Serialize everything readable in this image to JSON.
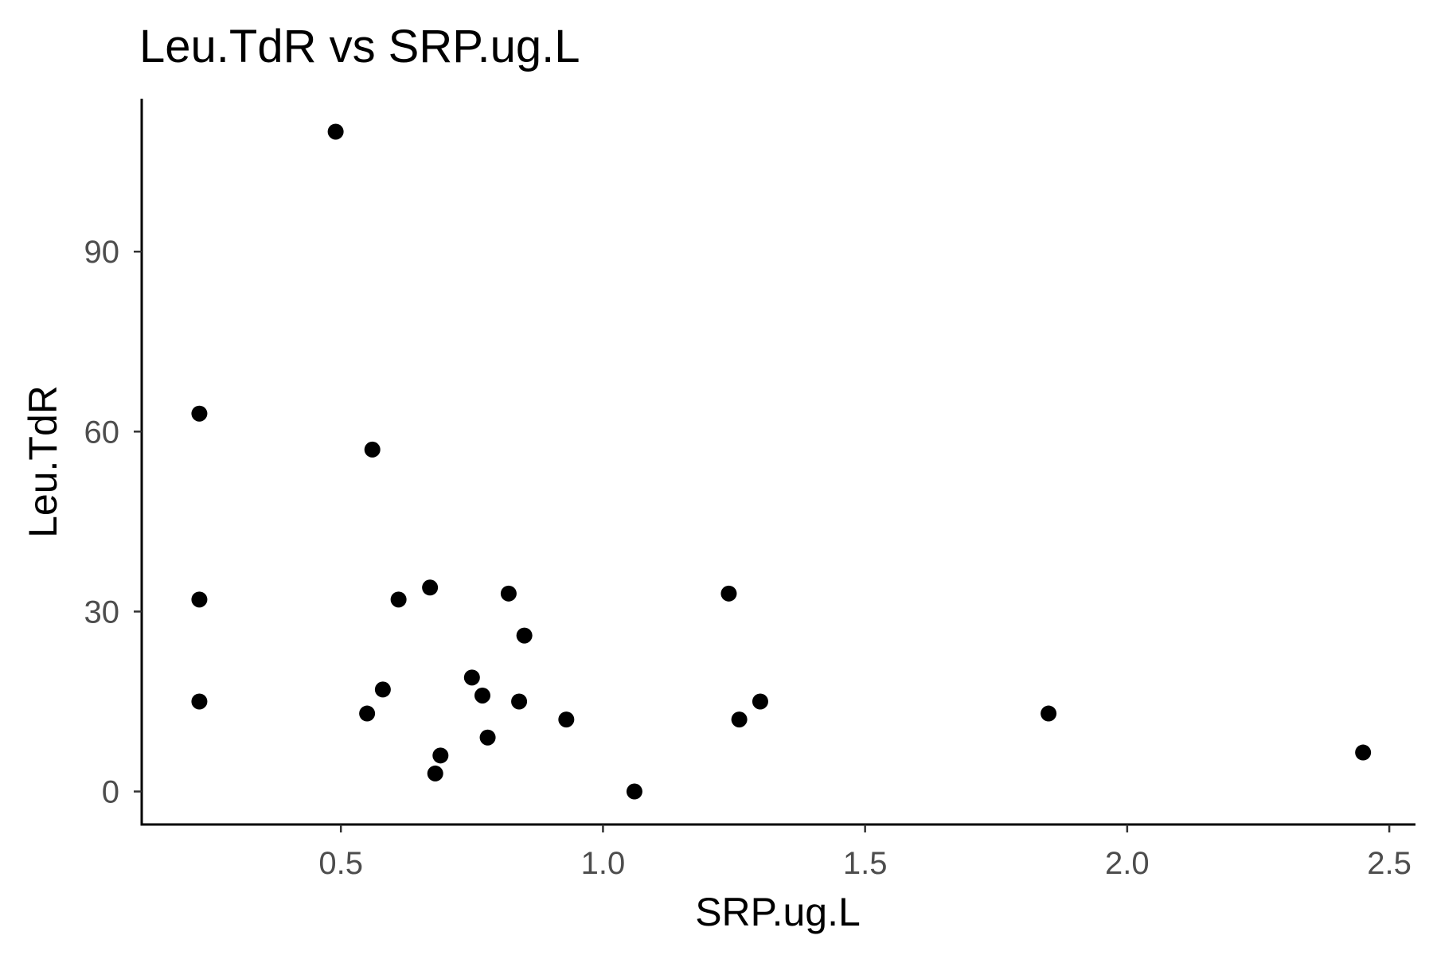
{
  "chart_data": {
    "type": "scatter",
    "title": "Leu.TdR vs SRP.ug.L",
    "xlabel": "SRP.ug.L",
    "ylabel": "Leu.TdR",
    "xlim": [
      0.12,
      2.55
    ],
    "ylim": [
      -5.5,
      115.5
    ],
    "xticks": [
      0.5,
      1.0,
      1.5,
      2.0,
      2.5
    ],
    "xtick_labels": [
      "0.5",
      "1.0",
      "1.5",
      "2.0",
      "2.5"
    ],
    "yticks": [
      0,
      30,
      60,
      90
    ],
    "ytick_labels": [
      "0",
      "30",
      "60",
      "90"
    ],
    "grid": false,
    "legend": "none",
    "point_color": "#000000",
    "points": [
      {
        "x": 0.49,
        "y": 110
      },
      {
        "x": 0.23,
        "y": 63
      },
      {
        "x": 0.23,
        "y": 32
      },
      {
        "x": 0.23,
        "y": 15
      },
      {
        "x": 0.56,
        "y": 57
      },
      {
        "x": 0.61,
        "y": 32
      },
      {
        "x": 0.67,
        "y": 34
      },
      {
        "x": 0.82,
        "y": 33
      },
      {
        "x": 0.85,
        "y": 26
      },
      {
        "x": 0.58,
        "y": 17
      },
      {
        "x": 0.55,
        "y": 13
      },
      {
        "x": 0.75,
        "y": 19
      },
      {
        "x": 0.77,
        "y": 16
      },
      {
        "x": 0.84,
        "y": 15
      },
      {
        "x": 0.93,
        "y": 12
      },
      {
        "x": 0.78,
        "y": 9
      },
      {
        "x": 0.69,
        "y": 6
      },
      {
        "x": 0.68,
        "y": 3
      },
      {
        "x": 1.06,
        "y": 0
      },
      {
        "x": 1.24,
        "y": 33
      },
      {
        "x": 1.26,
        "y": 12
      },
      {
        "x": 1.3,
        "y": 15
      },
      {
        "x": 1.85,
        "y": 13
      },
      {
        "x": 2.45,
        "y": 6.5
      }
    ]
  }
}
